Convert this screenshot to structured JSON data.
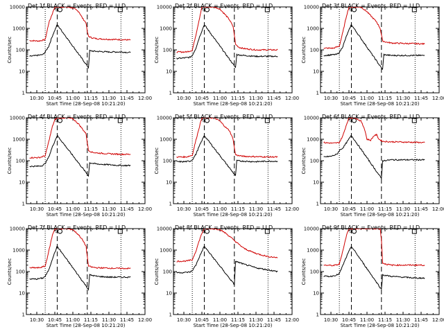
{
  "figure": {
    "xlabel": "Start Time (28-Sep-08 10:21:20)",
    "ylabel": "Counts/sec",
    "x_tick_labels": [
      "10:30",
      "10:45",
      "11:00",
      "11:15",
      "11:30",
      "11:45",
      "12:00"
    ],
    "y_tick_labels": [
      "1",
      "10",
      "100",
      "1000",
      "10000"
    ],
    "marker_labels": [
      "S",
      "S"
    ]
  },
  "chart_data": [
    {
      "type": "line",
      "title": "Det 1f BLACK = Events, RED = LLD",
      "xlim": [
        "10:21:20",
        "12:00"
      ],
      "ylim": [
        1,
        10000
      ],
      "yscale": "log",
      "grid": false,
      "dotted_lines": [
        "10:37",
        "11:40"
      ],
      "dashed_lines": [
        "10:47",
        "11:12"
      ],
      "series": [
        {
          "color": "#d00000",
          "x": [
            "10:24",
            "10:32",
            "10:37",
            "10:40",
            "10:43",
            "10:45",
            "10:47",
            "10:50",
            "10:55",
            "11:00",
            "11:05",
            "11:08",
            "11:11",
            "11:12",
            "11:13",
            "11:16",
            "11:20",
            "11:30",
            "11:40",
            "11:48"
          ],
          "values": [
            270,
            260,
            300,
            1800,
            5000,
            10000,
            10000,
            10000,
            10000,
            9000,
            6000,
            3000,
            1800,
            700,
            430,
            360,
            330,
            310,
            300,
            290
          ]
        },
        {
          "color": "#000000",
          "x": [
            "10:24",
            "10:30",
            "10:35",
            "10:37",
            "10:40",
            "10:43",
            "10:47",
            "11:13",
            "11:14",
            "11:20",
            "11:30",
            "11:40",
            "11:48"
          ],
          "values": [
            50,
            55,
            60,
            80,
            150,
            450,
            1500,
            15,
            90,
            85,
            80,
            80,
            75
          ]
        }
      ]
    },
    {
      "type": "line",
      "title": "Det 2f BLACK = Events, RED = LLD",
      "xlim": [
        "10:21:20",
        "12:00"
      ],
      "ylim": [
        1,
        10000
      ],
      "yscale": "log",
      "grid": false,
      "dotted_lines": [
        "10:37",
        "11:40"
      ],
      "dashed_lines": [
        "10:47",
        "11:12"
      ],
      "series": [
        {
          "color": "#d00000",
          "x": [
            "10:24",
            "10:32",
            "10:37",
            "10:40",
            "10:43",
            "10:45",
            "10:47",
            "10:50",
            "10:55",
            "11:00",
            "11:05",
            "11:08",
            "11:11",
            "11:12",
            "11:13",
            "11:16",
            "11:20",
            "11:30",
            "11:40",
            "11:48"
          ],
          "values": [
            80,
            80,
            95,
            500,
            3000,
            10000,
            10000,
            10000,
            10000,
            8000,
            4000,
            2500,
            1200,
            500,
            180,
            130,
            115,
            100,
            100,
            100
          ]
        },
        {
          "color": "#000000",
          "x": [
            "10:24",
            "10:30",
            "10:35",
            "10:37",
            "10:40",
            "10:43",
            "10:47",
            "11:13",
            "11:14",
            "11:20",
            "11:30",
            "11:40",
            "11:48"
          ],
          "values": [
            40,
            42,
            45,
            55,
            120,
            400,
            1500,
            15,
            60,
            55,
            50,
            50,
            50
          ]
        }
      ]
    },
    {
      "type": "line",
      "title": "Det 3f BLACK = Events, RED = LLD",
      "xlim": [
        "10:21:20",
        "12:00"
      ],
      "ylim": [
        1,
        10000
      ],
      "yscale": "log",
      "grid": false,
      "dotted_lines": [
        "10:37",
        "11:40"
      ],
      "dashed_lines": [
        "10:47",
        "11:12"
      ],
      "series": [
        {
          "color": "#d00000",
          "x": [
            "10:24",
            "10:32",
            "10:37",
            "10:40",
            "10:43",
            "10:45",
            "10:47",
            "10:50",
            "10:55",
            "11:00",
            "11:05",
            "11:08",
            "11:11",
            "11:12",
            "11:13",
            "11:16",
            "11:20",
            "11:30",
            "11:40",
            "11:48"
          ],
          "values": [
            120,
            120,
            150,
            700,
            4000,
            10000,
            10000,
            10000,
            10000,
            6000,
            3000,
            2000,
            1000,
            500,
            260,
            230,
            210,
            200,
            195,
            190
          ]
        },
        {
          "color": "#000000",
          "x": [
            "10:24",
            "10:30",
            "10:35",
            "10:37",
            "10:40",
            "10:43",
            "10:47",
            "11:13",
            "11:14",
            "11:20",
            "11:30",
            "11:40",
            "11:48"
          ],
          "values": [
            55,
            58,
            62,
            75,
            150,
            450,
            1500,
            12,
            60,
            55,
            55,
            55,
            55
          ]
        }
      ]
    },
    {
      "type": "line",
      "title": "Det 4f BLACK = Events, RED = LLD",
      "xlim": [
        "10:21:20",
        "12:00"
      ],
      "ylim": [
        1,
        10000
      ],
      "yscale": "log",
      "grid": false,
      "dotted_lines": [
        "10:37",
        "11:40"
      ],
      "dashed_lines": [
        "10:47",
        "11:12"
      ],
      "series": [
        {
          "color": "#d00000",
          "x": [
            "10:24",
            "10:32",
            "10:37",
            "10:40",
            "10:43",
            "10:45",
            "10:47",
            "10:50",
            "10:55",
            "11:00",
            "11:05",
            "11:08",
            "11:11",
            "11:12",
            "11:13",
            "11:16",
            "11:20",
            "11:30",
            "11:40",
            "11:48"
          ],
          "values": [
            140,
            140,
            170,
            800,
            4000,
            8000,
            10000,
            10000,
            10000,
            9000,
            5000,
            3000,
            1800,
            700,
            300,
            250,
            230,
            210,
            200,
            200
          ]
        },
        {
          "color": "#000000",
          "x": [
            "10:24",
            "10:30",
            "10:35",
            "10:37",
            "10:40",
            "10:43",
            "10:47",
            "11:13",
            "11:14",
            "11:20",
            "11:30",
            "11:40",
            "11:48"
          ],
          "values": [
            55,
            55,
            60,
            75,
            150,
            450,
            1500,
            20,
            80,
            70,
            65,
            60,
            60
          ]
        }
      ]
    },
    {
      "type": "line",
      "title": "Det 5f BLACK = Events, RED = LLD",
      "xlim": [
        "10:21:20",
        "12:00"
      ],
      "ylim": [
        1,
        10000
      ],
      "yscale": "log",
      "grid": false,
      "dotted_lines": [
        "10:37",
        "11:40"
      ],
      "dashed_lines": [
        "10:47",
        "11:12"
      ],
      "series": [
        {
          "color": "#d00000",
          "x": [
            "10:24",
            "10:32",
            "10:37",
            "10:40",
            "10:43",
            "10:45",
            "10:47",
            "10:50",
            "10:55",
            "11:00",
            "11:05",
            "11:08",
            "11:11",
            "11:12",
            "11:13",
            "11:16",
            "11:20",
            "11:30",
            "11:40",
            "11:48"
          ],
          "values": [
            150,
            150,
            180,
            900,
            4000,
            10000,
            10000,
            10000,
            10000,
            7000,
            3500,
            2500,
            1000,
            400,
            190,
            170,
            160,
            155,
            150,
            150
          ]
        },
        {
          "color": "#000000",
          "x": [
            "10:24",
            "10:30",
            "10:35",
            "10:37",
            "10:40",
            "10:43",
            "10:47",
            "11:13",
            "11:14",
            "11:20",
            "11:30",
            "11:40",
            "11:48"
          ],
          "values": [
            90,
            90,
            95,
            110,
            200,
            500,
            1500,
            20,
            100,
            95,
            90,
            95,
            95
          ]
        }
      ]
    },
    {
      "type": "line",
      "title": "Det 6f BLACK = Events, RED = LLD",
      "xlim": [
        "10:21:20",
        "12:00"
      ],
      "ylim": [
        1,
        10000
      ],
      "yscale": "log",
      "grid": false,
      "dotted_lines": [
        "10:37",
        "11:40"
      ],
      "dashed_lines": [
        "10:47",
        "11:12"
      ],
      "series": [
        {
          "color": "#d00000",
          "x": [
            "10:24",
            "10:32",
            "10:37",
            "10:40",
            "10:43",
            "10:45",
            "10:50",
            "10:55",
            "10:58",
            "11:00",
            "11:03",
            "11:06",
            "11:08",
            "11:10",
            "11:13",
            "11:16",
            "11:20",
            "11:30",
            "11:40",
            "11:48"
          ],
          "values": [
            700,
            650,
            700,
            1500,
            5000,
            10000,
            10000,
            7000,
            3000,
            1000,
            900,
            1500,
            1600,
            1000,
            800,
            780,
            760,
            740,
            720,
            700
          ]
        },
        {
          "color": "#000000",
          "x": [
            "10:24",
            "10:30",
            "10:35",
            "10:37",
            "10:40",
            "10:43",
            "10:47",
            "11:12",
            "11:13",
            "11:20",
            "11:30",
            "11:40",
            "11:48"
          ],
          "values": [
            150,
            160,
            200,
            300,
            400,
            700,
            1500,
            15,
            100,
            110,
            110,
            110,
            110
          ]
        }
      ]
    },
    {
      "type": "line",
      "title": "Det 7f BLACK = Events, RED = LLD",
      "xlim": [
        "10:21:20",
        "12:00"
      ],
      "ylim": [
        1,
        10000
      ],
      "yscale": "log",
      "grid": false,
      "dotted_lines": [
        "10:37",
        "11:40"
      ],
      "dashed_lines": [
        "10:47",
        "11:12"
      ],
      "series": [
        {
          "color": "#d00000",
          "x": [
            "10:24",
            "10:32",
            "10:37",
            "10:40",
            "10:43",
            "10:45",
            "10:47",
            "10:50",
            "10:55",
            "11:00",
            "11:05",
            "11:08",
            "11:11",
            "11:12",
            "11:13",
            "11:16",
            "11:20",
            "11:30",
            "11:40",
            "11:48"
          ],
          "values": [
            150,
            150,
            180,
            900,
            5000,
            10000,
            10000,
            10000,
            10000,
            9000,
            5000,
            3000,
            1500,
            500,
            180,
            160,
            150,
            145,
            140,
            140
          ]
        },
        {
          "color": "#000000",
          "x": [
            "10:24",
            "10:30",
            "10:35",
            "10:37",
            "10:40",
            "10:43",
            "10:47",
            "11:13",
            "11:14",
            "11:20",
            "11:30",
            "11:40",
            "11:48"
          ],
          "values": [
            45,
            45,
            50,
            60,
            120,
            400,
            1500,
            15,
            70,
            60,
            55,
            55,
            55
          ]
        }
      ]
    },
    {
      "type": "line",
      "title": "Det 8f BLACK = Events, RED = LLD",
      "xlim": [
        "10:21:20",
        "12:00"
      ],
      "ylim": [
        1,
        10000
      ],
      "yscale": "log",
      "grid": false,
      "dotted_lines": [
        "10:37",
        "11:40"
      ],
      "dashed_lines": [
        "10:47",
        "11:12"
      ],
      "series": [
        {
          "color": "#d00000",
          "x": [
            "10:24",
            "10:32",
            "10:37",
            "10:40",
            "10:43",
            "10:45",
            "10:47",
            "10:50",
            "10:55",
            "11:00",
            "11:05",
            "11:10",
            "11:15",
            "11:20",
            "11:25",
            "11:30",
            "11:40",
            "11:48"
          ],
          "values": [
            300,
            310,
            350,
            900,
            3000,
            6000,
            10000,
            10000,
            10000,
            9000,
            6000,
            3500,
            2000,
            1200,
            900,
            700,
            500,
            450
          ]
        },
        {
          "color": "#000000",
          "x": [
            "10:24",
            "10:30",
            "10:35",
            "10:37",
            "10:40",
            "10:43",
            "10:47",
            "11:12",
            "11:13",
            "11:20",
            "11:30",
            "11:40",
            "11:48"
          ],
          "values": [
            90,
            90,
            95,
            110,
            200,
            500,
            1500,
            25,
            300,
            220,
            150,
            120,
            100
          ]
        }
      ]
    },
    {
      "type": "line",
      "title": "Det 9f BLACK = Events, RED = LLD",
      "xlim": [
        "10:21:20",
        "12:00"
      ],
      "ylim": [
        1,
        10000
      ],
      "yscale": "log",
      "grid": false,
      "dotted_lines": [
        "10:37",
        "11:40"
      ],
      "dashed_lines": [
        "10:47",
        "11:12"
      ],
      "series": [
        {
          "color": "#d00000",
          "x": [
            "10:24",
            "10:32",
            "10:37",
            "10:40",
            "10:43",
            "10:45",
            "10:47",
            "10:50",
            "10:55",
            "11:00",
            "11:05",
            "11:08",
            "11:11",
            "11:12",
            "11:13",
            "11:16",
            "11:20",
            "11:30",
            "11:40",
            "11:48"
          ],
          "values": [
            200,
            190,
            220,
            1000,
            5000,
            10000,
            10000,
            10000,
            10000,
            10000,
            10000,
            10000,
            10000,
            3000,
            250,
            220,
            200,
            200,
            200,
            200
          ]
        },
        {
          "color": "#000000",
          "x": [
            "10:24",
            "10:30",
            "10:35",
            "10:37",
            "10:40",
            "10:43",
            "10:47",
            "11:12",
            "11:13",
            "11:20",
            "11:30",
            "11:40",
            "11:48"
          ],
          "values": [
            60,
            60,
            70,
            80,
            200,
            500,
            1500,
            15,
            70,
            60,
            55,
            50,
            50
          ]
        }
      ]
    }
  ]
}
